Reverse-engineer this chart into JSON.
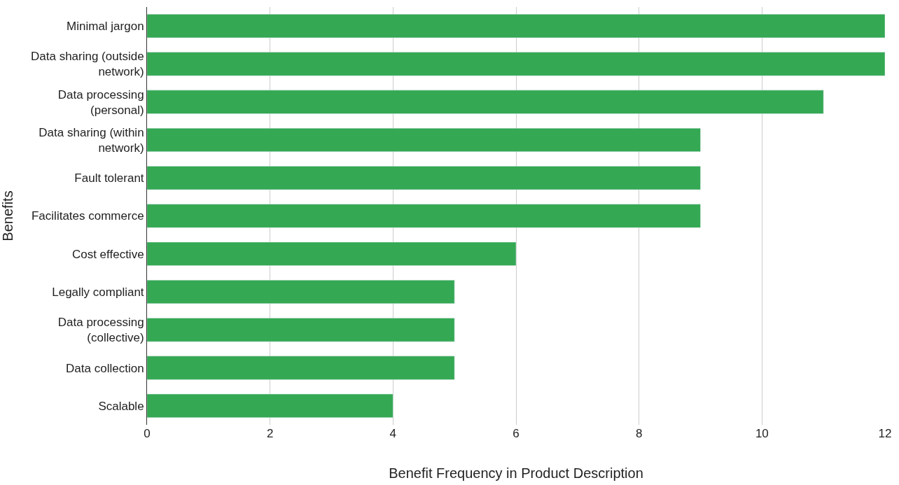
{
  "chart_data": {
    "type": "bar",
    "orientation": "horizontal",
    "categories": [
      "Minimal jargon",
      "Data sharing (outside network)",
      "Data processing (personal)",
      "Data sharing (within network)",
      "Fault tolerant",
      "Facilitates commerce",
      "Cost effective",
      "Legally compliant",
      "Data processing (collective)",
      "Data collection",
      "Scalable"
    ],
    "values": [
      12,
      12,
      11,
      9,
      9,
      9,
      6,
      5,
      5,
      5,
      4
    ],
    "color": "#34a853",
    "xlabel": "Benefit Frequency in Product Description",
    "ylabel": "Benefits",
    "xlim": [
      0,
      12
    ],
    "xticks": [
      0,
      2,
      4,
      6,
      8,
      10,
      12
    ],
    "grid": "x"
  }
}
